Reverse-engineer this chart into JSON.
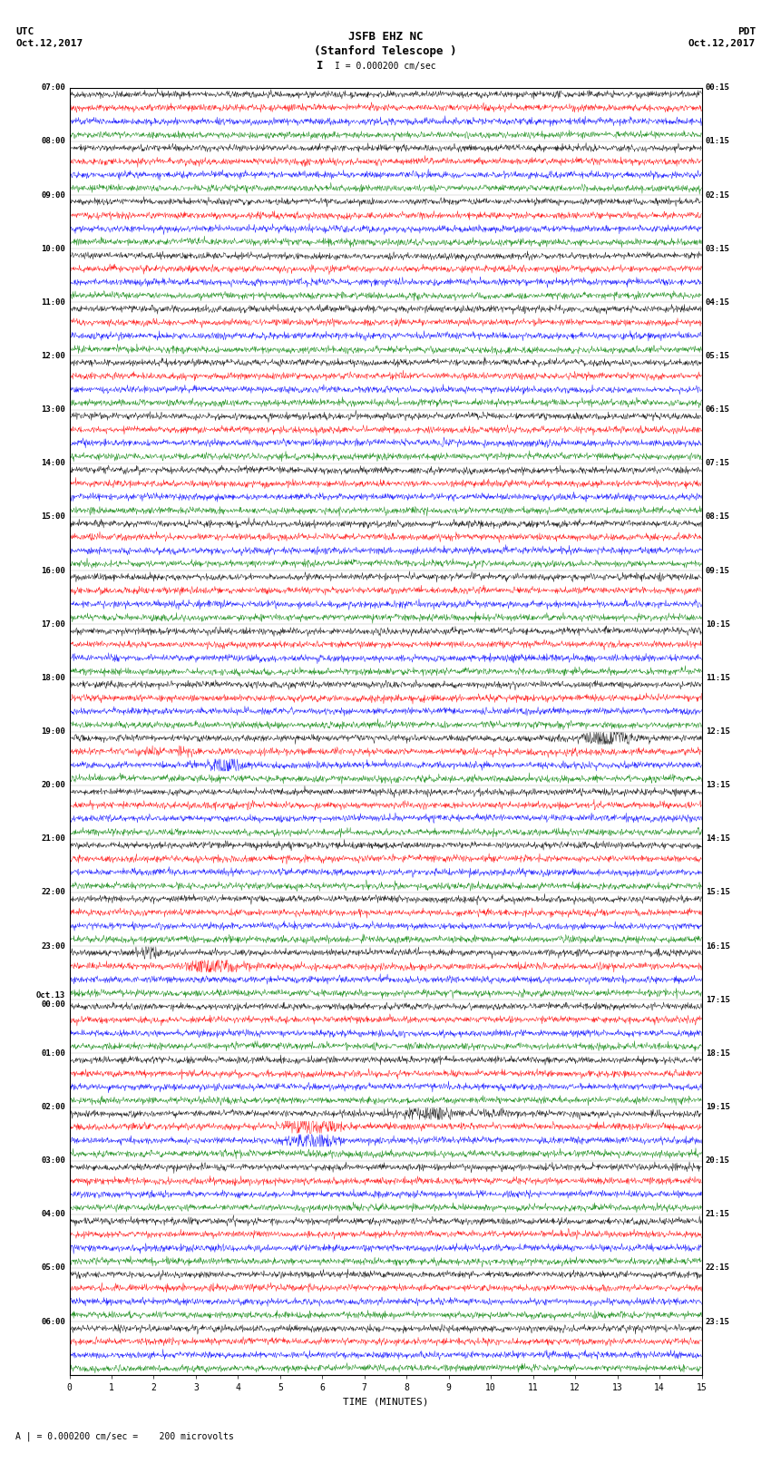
{
  "title_line1": "JSFB EHZ NC",
  "title_line2": "(Stanford Telescope )",
  "utc_label": "UTC",
  "utc_date": "Oct.12,2017",
  "pdt_label": "PDT",
  "pdt_date": "Oct.12,2017",
  "scale_label": "I = 0.000200 cm/sec",
  "bottom_label": "A | = 0.000200 cm/sec =    200 microvolts",
  "xlabel": "TIME (MINUTES)",
  "colors": [
    "black",
    "red",
    "blue",
    "green"
  ],
  "n_rows": 96,
  "traces_per_row": 4,
  "x_min": 0,
  "x_max": 15,
  "xticks": [
    0,
    1,
    2,
    3,
    4,
    5,
    6,
    7,
    8,
    9,
    10,
    11,
    12,
    13,
    14,
    15
  ],
  "fig_width": 8.5,
  "fig_height": 16.13,
  "bg_color": "white",
  "trace_color_order": [
    "black",
    "red",
    "blue",
    "green"
  ],
  "left_times_utc": [
    "07:00",
    "",
    "",
    "",
    "08:00",
    "",
    "",
    "",
    "09:00",
    "",
    "",
    "",
    "10:00",
    "",
    "",
    "",
    "11:00",
    "",
    "",
    "",
    "12:00",
    "",
    "",
    "",
    "13:00",
    "",
    "",
    "",
    "14:00",
    "",
    "",
    "",
    "15:00",
    "",
    "",
    "",
    "16:00",
    "",
    "",
    "",
    "17:00",
    "",
    "",
    "",
    "18:00",
    "",
    "",
    "",
    "19:00",
    "",
    "",
    "",
    "20:00",
    "",
    "",
    "",
    "21:00",
    "",
    "",
    "",
    "22:00",
    "",
    "",
    "",
    "23:00",
    "",
    "",
    "",
    "Oct.13\n00:00",
    "",
    "",
    "",
    "01:00",
    "",
    "",
    "",
    "02:00",
    "",
    "",
    "",
    "03:00",
    "",
    "",
    "",
    "04:00",
    "",
    "",
    "",
    "05:00",
    "",
    "",
    "",
    "06:00",
    "",
    "",
    ""
  ],
  "right_times_pdt": [
    "00:15",
    "",
    "",
    "",
    "01:15",
    "",
    "",
    "",
    "02:15",
    "",
    "",
    "",
    "03:15",
    "",
    "",
    "",
    "04:15",
    "",
    "",
    "",
    "05:15",
    "",
    "",
    "",
    "06:15",
    "",
    "",
    "",
    "07:15",
    "",
    "",
    "",
    "08:15",
    "",
    "",
    "",
    "09:15",
    "",
    "",
    "",
    "10:15",
    "",
    "",
    "",
    "11:15",
    "",
    "",
    "",
    "12:15",
    "",
    "",
    "",
    "13:15",
    "",
    "",
    "",
    "14:15",
    "",
    "",
    "",
    "15:15",
    "",
    "",
    "",
    "16:15",
    "",
    "",
    "",
    "17:15",
    "",
    "",
    "",
    "18:15",
    "",
    "",
    "",
    "19:15",
    "",
    "",
    "",
    "20:15",
    "",
    "",
    "",
    "21:15",
    "",
    "",
    "",
    "22:15",
    "",
    "",
    "",
    "23:15",
    "",
    "",
    ""
  ]
}
